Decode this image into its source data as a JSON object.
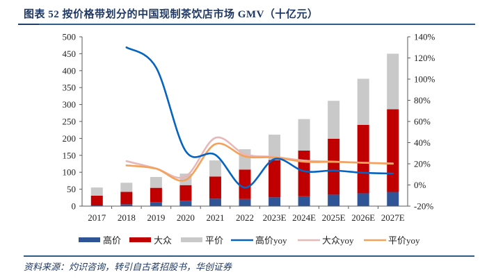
{
  "title": "图表 52  按价格带划分的中国现制茶饮店市场 GMV（十亿元）",
  "source": "资料来源：灼识咨询，转引自古茗招股书，华创证券",
  "colors": {
    "high": "#2f5597",
    "mass": "#c00000",
    "value": "#c9c9c9",
    "high_yoy": "#0563c1",
    "mass_yoy": "#e8b7b7",
    "value_yoy": "#f4a15a",
    "title": "#1f3864"
  },
  "chart_data": {
    "type": "bar",
    "stacked": true,
    "title": "按价格带划分的中国现制茶饮店市场 GMV（十亿元）",
    "categories": [
      "2017",
      "2018",
      "2019",
      "2020",
      "2021",
      "2022",
      "2023E",
      "2024E",
      "2025E",
      "2026E",
      "2027E"
    ],
    "left_axis": {
      "ylim": [
        0,
        500
      ],
      "ticks": [
        "0",
        "50",
        "100",
        "150",
        "200",
        "250",
        "300",
        "350",
        "400",
        "450",
        "500"
      ],
      "unit": "十亿元"
    },
    "right_axis": {
      "ylim": [
        -20,
        140
      ],
      "ticks": [
        "-20%",
        "0%",
        "20%",
        "40%",
        "60%",
        "80%",
        "100%",
        "120%",
        "140%"
      ]
    },
    "grid": false,
    "legend_position": "bottom",
    "series": [
      {
        "name": "高价",
        "type": "bar",
        "axis": "left",
        "values": [
          2,
          5.5,
          12,
          16,
          22,
          21,
          26,
          29,
          34,
          38,
          42
        ]
      },
      {
        "name": "大众",
        "type": "bar",
        "axis": "left",
        "values": [
          29,
          36.5,
          42,
          46,
          65.5,
          87,
          110,
          135,
          165,
          202,
          244
        ]
      },
      {
        "name": "平价",
        "type": "bar",
        "axis": "left",
        "values": [
          24,
          27,
          32,
          34,
          47.5,
          60,
          75,
          93,
          112,
          136,
          164
        ]
      },
      {
        "name": "高价yoy",
        "type": "line",
        "axis": "right",
        "values": [
          null,
          130,
          111,
          32,
          28.5,
          -2.5,
          24.5,
          13,
          13.6,
          11.5,
          10.8
        ]
      },
      {
        "name": "大众yoy",
        "type": "line",
        "axis": "right",
        "values": [
          null,
          22.5,
          15.6,
          8,
          44.5,
          29,
          26.5,
          23,
          22,
          21,
          20.3
        ]
      },
      {
        "name": "平价yoy",
        "type": "line",
        "axis": "right",
        "values": [
          null,
          18.5,
          15.4,
          4.7,
          38.6,
          27,
          26,
          22,
          21.8,
          21,
          20
        ]
      }
    ]
  }
}
